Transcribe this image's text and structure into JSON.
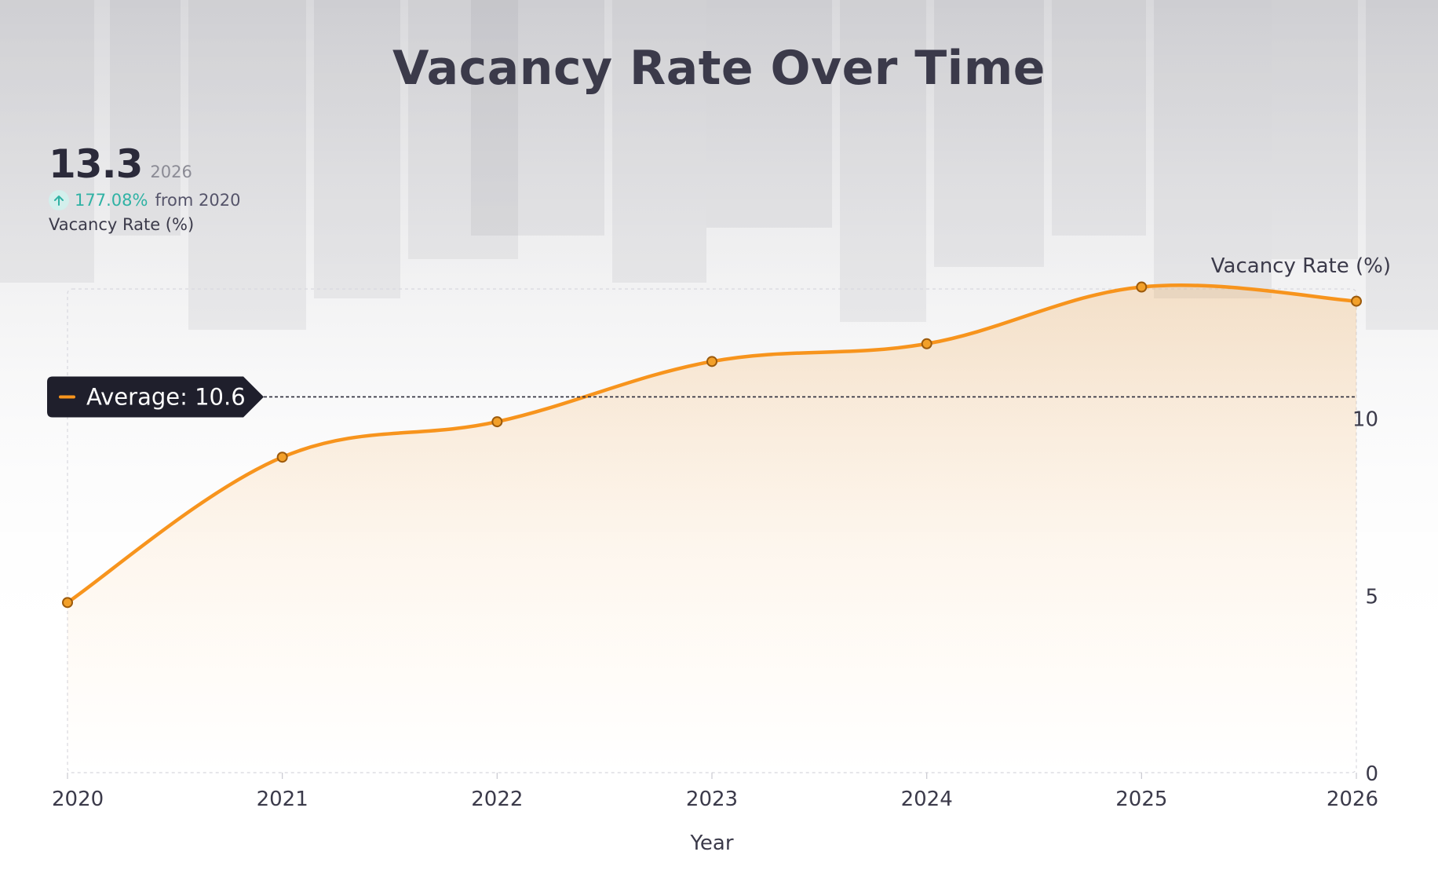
{
  "title": "Vacancy Rate Over Time",
  "kpi": {
    "value": "13.3",
    "year": "2026",
    "change": "177.08%",
    "from_text": "from 2020",
    "label": "Vacancy Rate (%)",
    "arrow_icon": "arrow-up-icon"
  },
  "colors": {
    "line": "#f7941d",
    "marker_fill": "#f2a02a",
    "marker_stroke": "#9c5a0c",
    "average_badge": "#1f1f2c",
    "positive": "#2fb2a4"
  },
  "chart_data": {
    "type": "line",
    "x": [
      "2020",
      "2021",
      "2022",
      "2023",
      "2024",
      "2025",
      "2026"
    ],
    "series": [
      {
        "name": "Vacancy Rate (%)",
        "values": [
          4.8,
          8.9,
          9.9,
          11.6,
          12.1,
          13.7,
          13.3
        ]
      }
    ],
    "xlabel": "Year",
    "ylabel": "Vacancy Rate (%)",
    "ylim": [
      0,
      14
    ],
    "yticks": [
      0,
      5,
      10
    ],
    "average": {
      "label": "Average: 10.6",
      "value": 10.6
    },
    "y_axis_side": "right",
    "grid": false,
    "area_fill": true
  }
}
